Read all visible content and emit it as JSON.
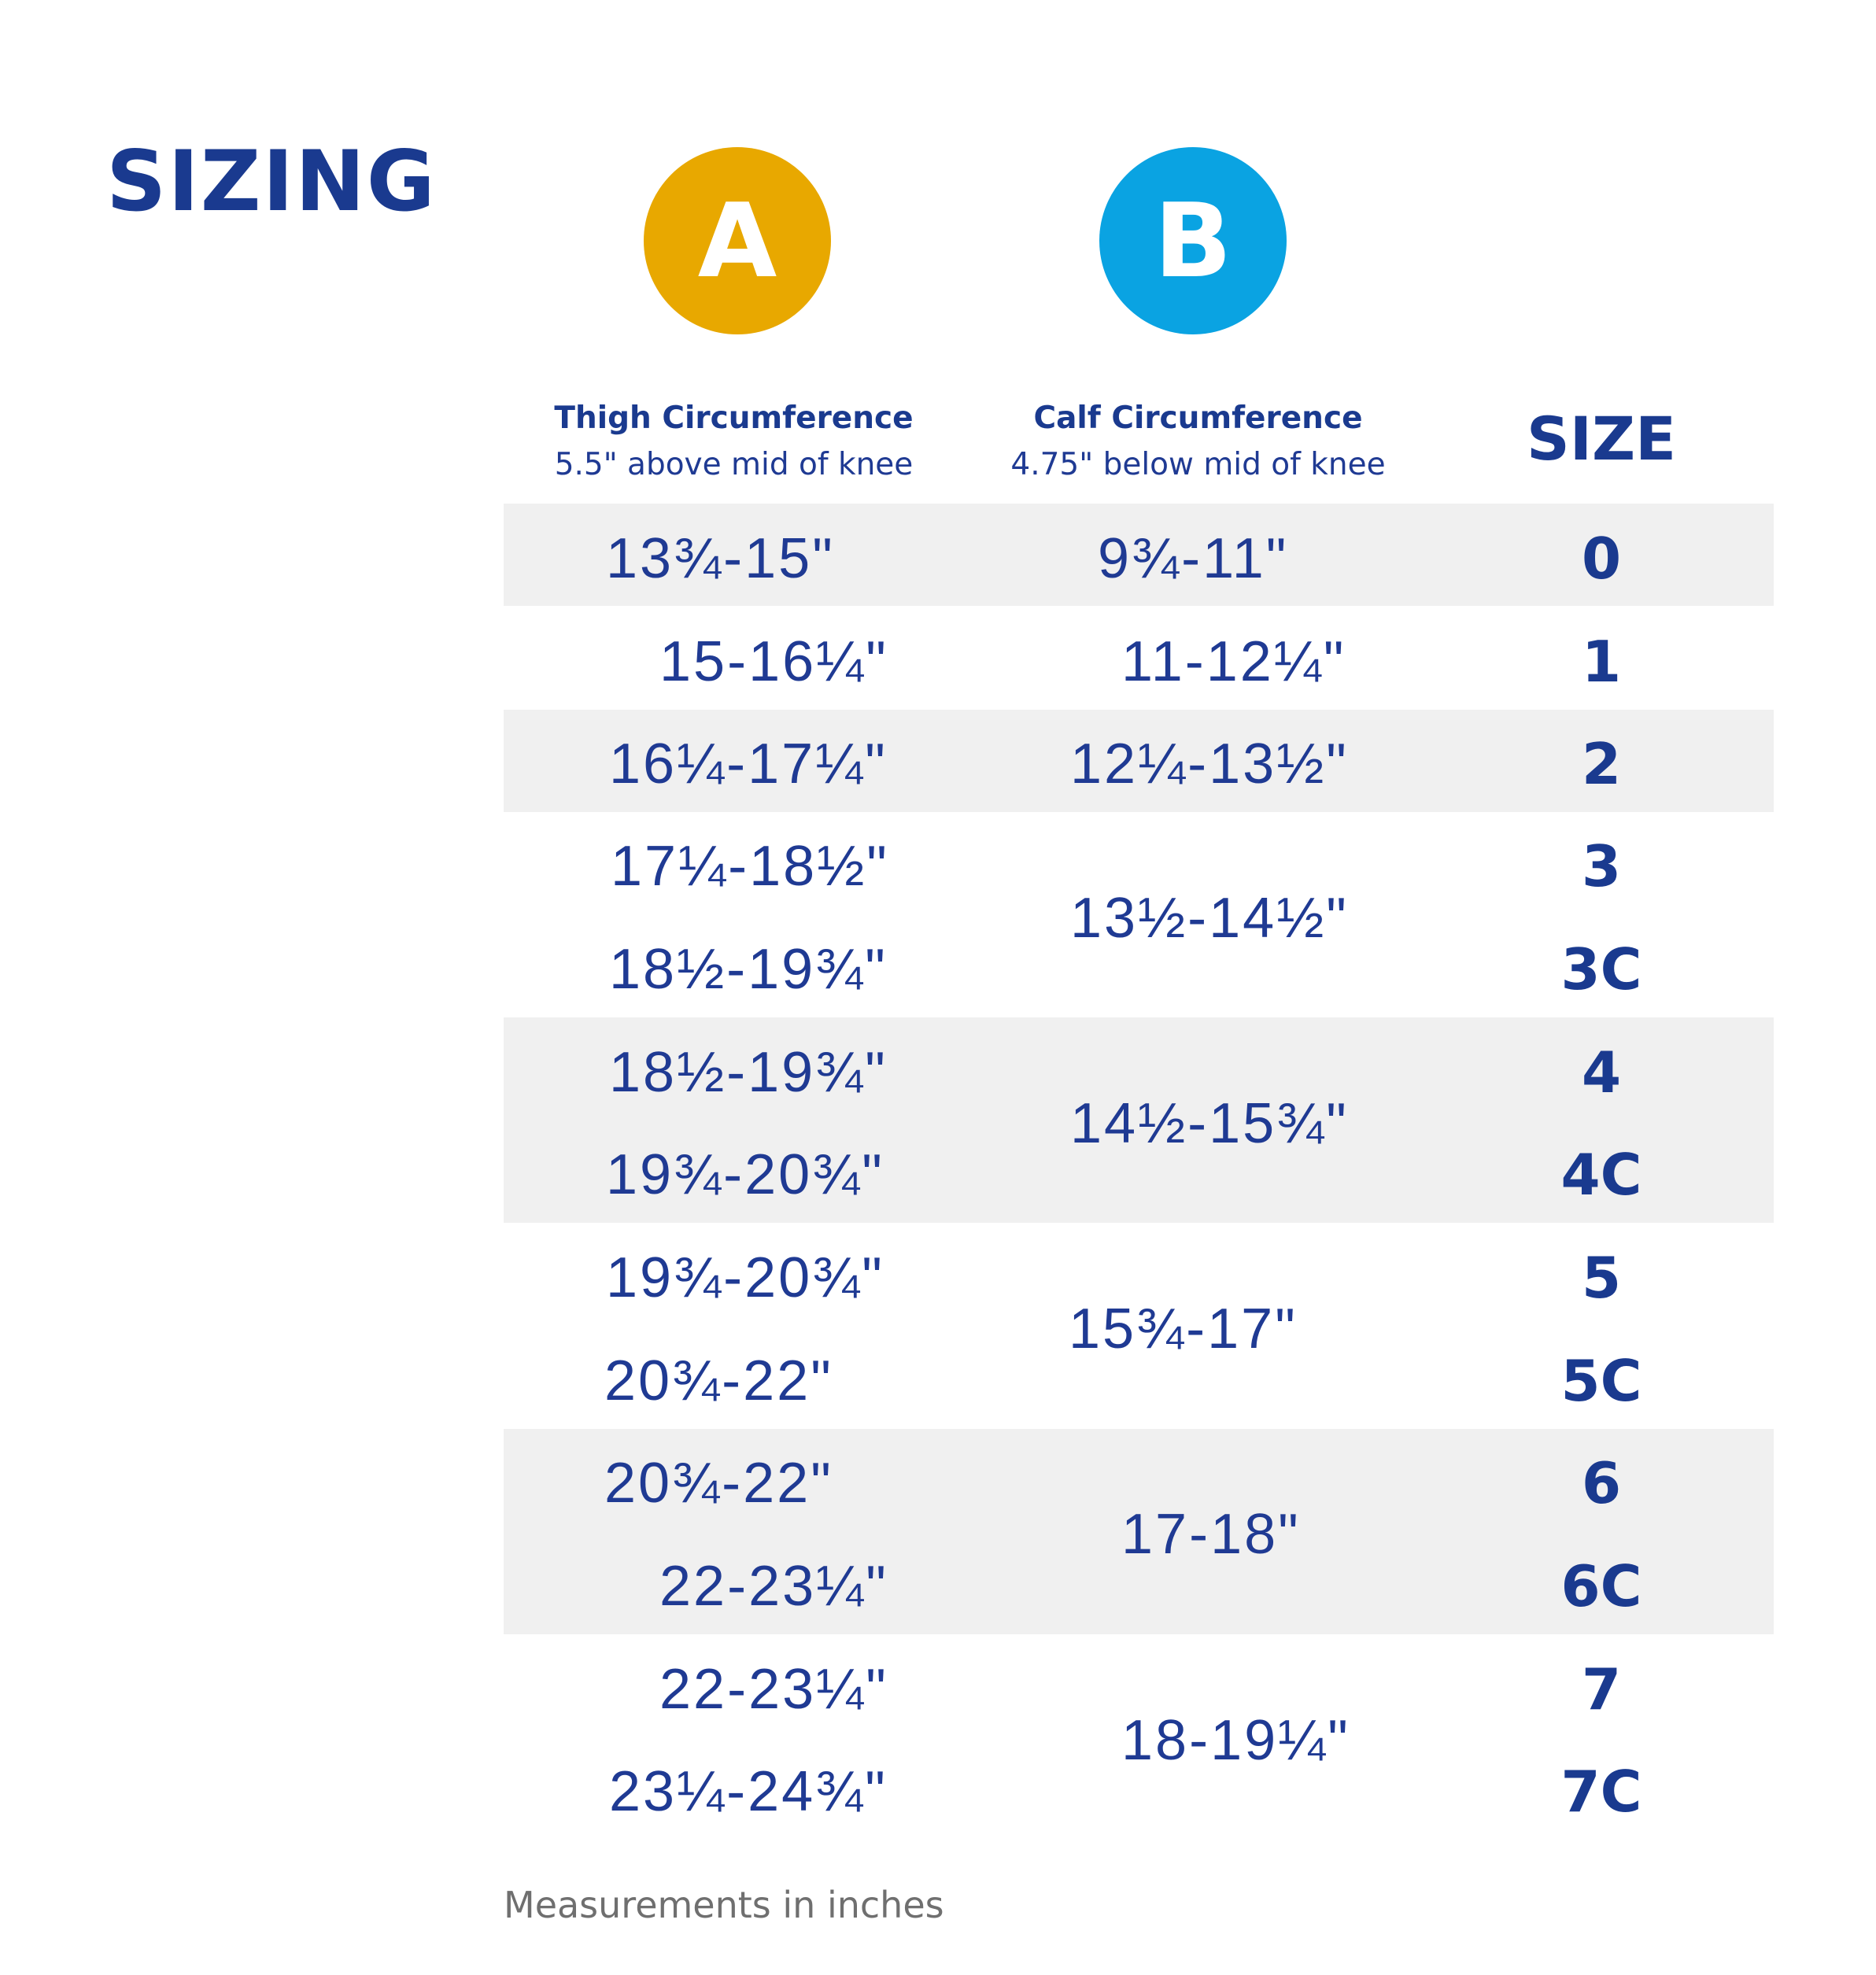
{
  "title": "SIZING",
  "badges": {
    "a": "A",
    "b": "B"
  },
  "headers": {
    "thigh": {
      "main": "Thigh Circumference",
      "sub": "5.5\" above mid of knee"
    },
    "calf": {
      "main": "Calf Circumference",
      "sub": "4.75\" below mid of knee"
    },
    "size": "SIZE"
  },
  "colors": {
    "a_badge": "#e8a800",
    "b_badge": "#0aa3e2",
    "text": "#1a3a8f",
    "band": "#f0f0f0"
  },
  "thigh": [
    "13¾-15\"",
    "15-16¼\"",
    "16¼-17¼\"",
    "17¼-18½\"",
    "18½-19¾\"",
    "18½-19¾\"",
    "19¾-20¾\"",
    "19¾-20¾\"",
    "20¾-22\"",
    "20¾-22\"",
    "22-23¼\"",
    "22-23¼\"",
    "23¼-24¾\""
  ],
  "calf": [
    "9¾-11\"",
    "11-12¼\"",
    "12¼-13½\"",
    "13½-14½\"",
    "14½-15¾\"",
    "15¾-17\"",
    "17-18\"",
    "18-19¼\""
  ],
  "sizes": [
    "0",
    "1",
    "2",
    "3",
    "3C",
    "4",
    "4C",
    "5",
    "5C",
    "6",
    "6C",
    "7",
    "7C"
  ],
  "footnote": "Measurements in inches"
}
